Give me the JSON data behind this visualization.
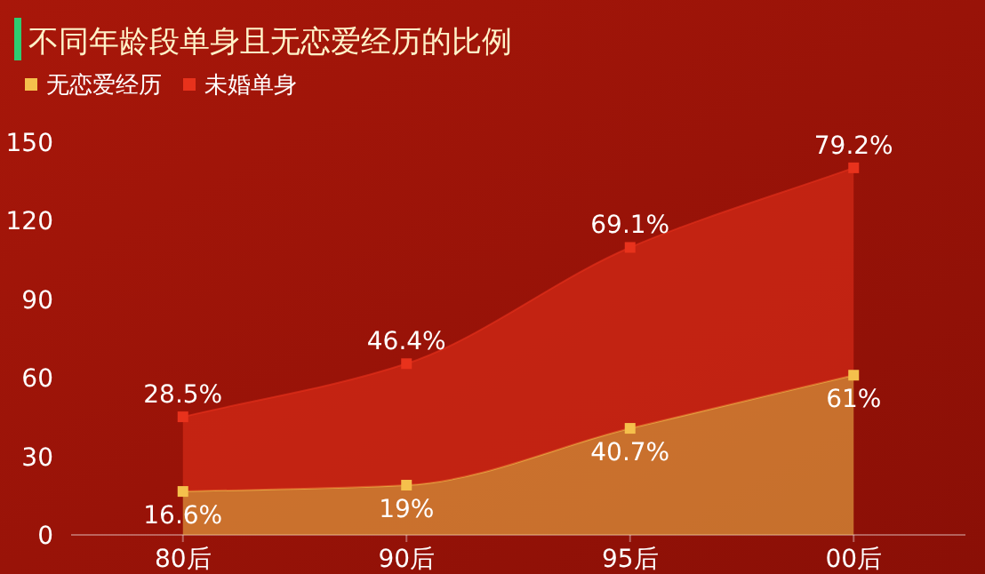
{
  "chart_data": {
    "type": "area",
    "title": "不同年龄段单身且无恋爱经历的比例",
    "categories": [
      "80后",
      "90后",
      "95后",
      "00后"
    ],
    "stacked": true,
    "ylim": [
      0,
      150
    ],
    "yticks": [
      0,
      30,
      60,
      90,
      120,
      150
    ],
    "grid": false,
    "legend": "top left",
    "marker": "square",
    "series": [
      {
        "name": "无恋爱经历",
        "color": "#f5c04c",
        "values": [
          16.6,
          19,
          40.7,
          61
        ],
        "value_labels": [
          "16.6%",
          "19%",
          "40.7%",
          "61%"
        ]
      },
      {
        "name": "未婚单身",
        "color": "#e8321c",
        "values": [
          28.5,
          46.4,
          69.1,
          79.2
        ],
        "value_labels": [
          "28.5%",
          "46.4%",
          "69.1%",
          "79.2%"
        ]
      }
    ]
  }
}
